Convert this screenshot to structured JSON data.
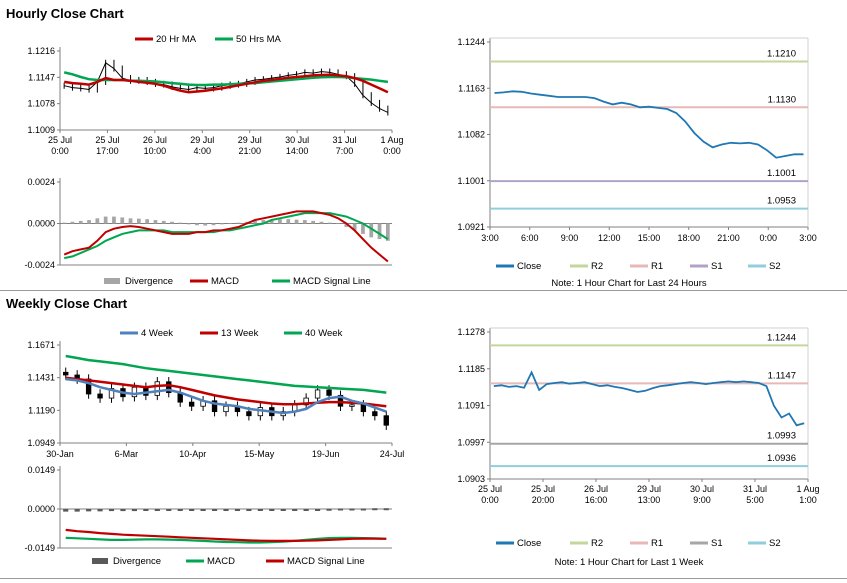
{
  "page": {
    "hourly_title": "Hourly Close Chart",
    "weekly_title": "Weekly Close Chart"
  },
  "chart_data": [
    {
      "id": "hourly-price",
      "type": "line",
      "legend": [
        "20 Hr MA",
        "50 Hrs MA"
      ],
      "yticks": [
        "1.1216",
        "1.1147",
        "1.1078",
        "1.1009"
      ],
      "ylim": [
        1.1009,
        1.1216
      ],
      "xticks": [
        [
          "25 Jul",
          "0:00"
        ],
        [
          "25 Jul",
          "17:00"
        ],
        [
          "26 Jul",
          "10:00"
        ],
        [
          "29 Jul",
          "4:00"
        ],
        [
          "29 Jul",
          "21:00"
        ],
        [
          "30 Jul",
          "14:00"
        ],
        [
          "31 Jul",
          "7:00"
        ],
        [
          "1 Aug",
          "0:00"
        ]
      ],
      "colors": {
        "close": "#000000",
        "ma20": "#c00000",
        "ma50": "#00a650"
      },
      "series": [
        {
          "name": "Close",
          "values": [
            1.1125,
            1.112,
            1.1118,
            1.1115,
            1.1135,
            1.1185,
            1.117,
            1.1145,
            1.1138,
            1.114,
            1.1135,
            1.113,
            1.1128,
            1.1122,
            1.1118,
            1.1115,
            1.112,
            1.1118,
            1.112,
            1.1125,
            1.1128,
            1.113,
            1.1135,
            1.114,
            1.1142,
            1.1145,
            1.1148,
            1.1152,
            1.1155,
            1.116,
            1.1158,
            1.1162,
            1.116,
            1.1155,
            1.115,
            1.113,
            1.11,
            1.108,
            1.1065,
            1.1055
          ]
        },
        {
          "name": "20 Hr MA",
          "values": [
            1.1135,
            1.1132,
            1.113,
            1.1128,
            1.1135,
            1.1145,
            1.114,
            1.114,
            1.1138,
            1.1135,
            1.1133,
            1.113,
            1.1125,
            1.1118,
            1.1112,
            1.1108,
            1.111,
            1.1112,
            1.1115,
            1.1118,
            1.1122,
            1.1126,
            1.113,
            1.1134,
            1.1138,
            1.114,
            1.1143,
            1.1146,
            1.1148,
            1.115,
            1.1152,
            1.1153,
            1.1154,
            1.1152,
            1.115,
            1.1145,
            1.1138,
            1.1128,
            1.1118,
            1.1108
          ]
        },
        {
          "name": "50 Hrs MA",
          "values": [
            1.116,
            1.1155,
            1.1148,
            1.1142,
            1.114,
            1.114,
            1.114,
            1.114,
            1.1138,
            1.1138,
            1.1137,
            1.1136,
            1.1134,
            1.1132,
            1.113,
            1.1128,
            1.1127,
            1.1127,
            1.1128,
            1.1128,
            1.1129,
            1.113,
            1.1131,
            1.1132,
            1.1134,
            1.1136,
            1.1138,
            1.114,
            1.1142,
            1.1144,
            1.1146,
            1.1147,
            1.1148,
            1.1148,
            1.1147,
            1.1145,
            1.1143,
            1.1141,
            1.1138,
            1.1135
          ]
        }
      ]
    },
    {
      "id": "hourly-macd",
      "type": "bar",
      "legend": [
        "Divergence",
        "MACD",
        "MACD Signal Line"
      ],
      "yticks": [
        "0.0024",
        "0.0000",
        "-0.0024"
      ],
      "ylim": [
        -0.0024,
        0.0024
      ],
      "colors": {
        "divergence": "#a6a6a6",
        "macd": "#c00000",
        "signal": "#00a650"
      },
      "series": [
        {
          "name": "Divergence",
          "values": [
            5e-05,
            0.0001,
            0.00015,
            0.0002,
            0.0003,
            0.0004,
            0.0004,
            0.00035,
            0.0003,
            0.00028,
            0.00025,
            0.0002,
            0.00015,
            0.0001,
            5e-05,
            -5e-05,
            -0.0001,
            -0.00012,
            -0.0001,
            -5e-05,
            0.0,
            5e-05,
            0.0001,
            0.00015,
            0.0002,
            0.00022,
            0.00025,
            0.00025,
            0.00022,
            0.0002,
            0.00015,
            0.0001,
            5e-05,
            0.0,
            -0.0002,
            -0.0004,
            -0.0006,
            -0.0008,
            -0.0009,
            -0.001
          ]
        },
        {
          "name": "MACD",
          "values": [
            -0.0018,
            -0.0016,
            -0.0015,
            -0.0014,
            -0.001,
            -0.0005,
            -0.0003,
            -0.0002,
            -0.00015,
            -0.0002,
            -0.0003,
            -0.0004,
            -0.0005,
            -0.0006,
            -0.0006,
            -0.0006,
            -0.0005,
            -0.0005,
            -0.0004,
            -0.0004,
            -0.0003,
            -0.0002,
            0.0,
            0.0002,
            0.0003,
            0.0004,
            0.0005,
            0.0006,
            0.0007,
            0.0007,
            0.0007,
            0.0006,
            0.0005,
            0.0003,
            0.0,
            -0.0004,
            -0.0009,
            -0.0014,
            -0.0018,
            -0.0022
          ]
        },
        {
          "name": "MACD Signal Line",
          "values": [
            -0.002,
            -0.0019,
            -0.0017,
            -0.0015,
            -0.0013,
            -0.001,
            -0.0008,
            -0.0006,
            -0.0005,
            -0.0004,
            -0.0004,
            -0.0004,
            -0.0004,
            -0.0005,
            -0.0005,
            -0.0005,
            -0.0005,
            -0.0005,
            -0.0005,
            -0.0004,
            -0.0004,
            -0.0003,
            -0.0002,
            -0.0001,
            0.0,
            0.0002,
            0.0003,
            0.0004,
            0.0005,
            0.0006,
            0.0006,
            0.0006,
            0.0006,
            0.0005,
            0.0004,
            0.0002,
            0.0,
            -0.0003,
            -0.0006,
            -0.0009
          ]
        }
      ]
    },
    {
      "id": "hourly-pivots",
      "type": "line",
      "note": "Note: 1 Hour Chart for Last 24 Hours",
      "legend": [
        "Close",
        "R2",
        "R1",
        "S1",
        "S2"
      ],
      "yticks": [
        "1.1244",
        "1.1163",
        "1.1082",
        "1.1001",
        "1.0921"
      ],
      "ylim": [
        1.0921,
        1.1244
      ],
      "xticks": [
        "3:00",
        "6:00",
        "9:00",
        "12:00",
        "15:00",
        "18:00",
        "21:00",
        "0:00",
        "3:00"
      ],
      "colors": {
        "close": "#1f77b4",
        "r2": "#c3d69b",
        "r1": "#e6b9b8",
        "s1": "#b3a2c7",
        "s2": "#92cddc"
      },
      "levels": [
        {
          "name": "R2",
          "value": 1.121,
          "label": "1.1210"
        },
        {
          "name": "R1",
          "value": 1.113,
          "label": "1.1130"
        },
        {
          "name": "S1",
          "value": 1.1001,
          "label": "1.1001"
        },
        {
          "name": "S2",
          "value": 1.0953,
          "label": "1.0953"
        }
      ],
      "series": [
        {
          "name": "Close",
          "values": [
            1.1155,
            1.1156,
            1.1158,
            1.1157,
            1.1154,
            1.1152,
            1.115,
            1.1148,
            1.1148,
            1.1148,
            1.1148,
            1.1146,
            1.114,
            1.1135,
            1.1138,
            1.1135,
            1.113,
            1.1131,
            1.1129,
            1.1127,
            1.112,
            1.1105,
            1.1085,
            1.107,
            1.106,
            1.1065,
            1.1068,
            1.1067,
            1.1068,
            1.1065,
            1.1055,
            1.1042,
            1.1045,
            1.1048,
            1.1048
          ]
        }
      ]
    },
    {
      "id": "weekly-price",
      "type": "line",
      "legend": [
        "4 Week",
        "13 Week",
        "40 Week"
      ],
      "yticks": [
        "1.1671",
        "1.1431",
        "1.1190",
        "1.0949"
      ],
      "ylim": [
        1.0949,
        1.1671
      ],
      "xticks": [
        "30-Jan",
        "6-Mar",
        "10-Apr",
        "15-May",
        "19-Jun",
        "24-Jul"
      ],
      "colors": {
        "ma4": "#4f81bd",
        "ma13": "#c00000",
        "ma40": "#00a650",
        "candle": "#000000"
      },
      "series": [
        {
          "name": "Close",
          "values": [
            1.145,
            1.142,
            1.131,
            1.128,
            1.135,
            1.129,
            1.136,
            1.13,
            1.14,
            1.132,
            1.125,
            1.122,
            1.126,
            1.118,
            1.122,
            1.118,
            1.115,
            1.121,
            1.115,
            1.118,
            1.123,
            1.128,
            1.134,
            1.13,
            1.122,
            1.123,
            1.118,
            1.115,
            1.108
          ]
        },
        {
          "name": "4 Week",
          "values": [
            1.142,
            1.141,
            1.139,
            1.136,
            1.134,
            1.132,
            1.131,
            1.132,
            1.133,
            1.134,
            1.132,
            1.129,
            1.126,
            1.124,
            1.123,
            1.122,
            1.12,
            1.119,
            1.118,
            1.117,
            1.118,
            1.12,
            1.125,
            1.128,
            1.129,
            1.126,
            1.124,
            1.121,
            1.118
          ]
        },
        {
          "name": "13 Week",
          "values": [
            1.143,
            1.142,
            1.141,
            1.14,
            1.139,
            1.138,
            1.137,
            1.136,
            1.137,
            1.1375,
            1.136,
            1.134,
            1.132,
            1.13,
            1.1285,
            1.127,
            1.126,
            1.125,
            1.124,
            1.1235,
            1.1235,
            1.124,
            1.1245,
            1.125,
            1.125,
            1.1245,
            1.124,
            1.123,
            1.122
          ]
        },
        {
          "name": "40 Week",
          "values": [
            1.159,
            1.1575,
            1.156,
            1.155,
            1.154,
            1.153,
            1.1515,
            1.15,
            1.149,
            1.148,
            1.147,
            1.146,
            1.145,
            1.144,
            1.143,
            1.142,
            1.141,
            1.14,
            1.139,
            1.138,
            1.137,
            1.1365,
            1.136,
            1.1355,
            1.135,
            1.1345,
            1.134,
            1.133,
            1.132
          ]
        }
      ]
    },
    {
      "id": "weekly-macd",
      "type": "bar",
      "legend": [
        "Divergence",
        "MACD",
        "MACD Signal Line"
      ],
      "yticks": [
        "0.0149",
        "0.0000",
        "-0.0149"
      ],
      "ylim": [
        -0.0149,
        0.0149
      ],
      "colors": {
        "divergence": "#595959",
        "macd": "#00a650",
        "signal": "#c00000"
      },
      "series": [
        {
          "name": "Divergence",
          "values": [
            -0.001,
            -0.001,
            -0.0009,
            -0.0009,
            -0.0008,
            -0.0008,
            -0.0008,
            -0.0007,
            -0.0007,
            -0.0007,
            -0.0006,
            -0.0006,
            -0.0006,
            -0.0005,
            -0.0005,
            -0.0005,
            -0.0004,
            -0.0004,
            -0.0003,
            -0.0003,
            -0.0002,
            -0.0001,
            0.0,
            0.0001,
            0.0002,
            0.0002,
            0.0002,
            0.0003,
            0.0003
          ]
        },
        {
          "name": "MACD",
          "values": [
            -0.011,
            -0.0112,
            -0.0114,
            -0.0116,
            -0.0118,
            -0.0118,
            -0.0117,
            -0.0116,
            -0.0116,
            -0.0117,
            -0.0118,
            -0.012,
            -0.0122,
            -0.0124,
            -0.0126,
            -0.0127,
            -0.0128,
            -0.0128,
            -0.0127,
            -0.0125,
            -0.0122,
            -0.0118,
            -0.0114,
            -0.0111,
            -0.011,
            -0.011,
            -0.0111,
            -0.0112,
            -0.0114
          ]
        },
        {
          "name": "MACD Signal Line",
          "values": [
            -0.008,
            -0.0085,
            -0.0088,
            -0.0092,
            -0.0095,
            -0.0098,
            -0.01,
            -0.0102,
            -0.0104,
            -0.0106,
            -0.0108,
            -0.011,
            -0.0112,
            -0.0114,
            -0.0116,
            -0.0118,
            -0.012,
            -0.0121,
            -0.0122,
            -0.0122,
            -0.0122,
            -0.0121,
            -0.012,
            -0.0118,
            -0.0116,
            -0.0114,
            -0.0113,
            -0.0113,
            -0.0114
          ]
        }
      ]
    },
    {
      "id": "weekly-pivots",
      "type": "line",
      "note": "Note: 1 Hour Chart for Last 1 Week",
      "legend": [
        "Close",
        "R2",
        "R1",
        "S1",
        "S2"
      ],
      "yticks": [
        "1.1278",
        "1.1185",
        "1.1091",
        "1.0997",
        "1.0903"
      ],
      "ylim": [
        1.0903,
        1.1278
      ],
      "xticks": [
        [
          "25 Jul",
          "0:00"
        ],
        [
          "25 Jul",
          "20:00"
        ],
        [
          "26 Jul",
          "16:00"
        ],
        [
          "29 Jul",
          "13:00"
        ],
        [
          "30 Jul",
          "9:00"
        ],
        [
          "31 Jul",
          "5:00"
        ],
        [
          "1 Aug",
          "1:00"
        ]
      ],
      "colors": {
        "close": "#1f77b4",
        "r2": "#c3d69b",
        "r1": "#e6b9b8",
        "s1": "#a6a6a6",
        "s2": "#92cddc"
      },
      "levels": [
        {
          "name": "R2",
          "value": 1.1244,
          "label": "1.1244"
        },
        {
          "name": "R1",
          "value": 1.1147,
          "label": "1.1147"
        },
        {
          "name": "S1",
          "value": 1.0993,
          "label": "1.0993"
        },
        {
          "name": "S2",
          "value": 1.0936,
          "label": "1.0936"
        }
      ],
      "series": [
        {
          "name": "Close",
          "values": [
            1.114,
            1.1142,
            1.1138,
            1.114,
            1.1136,
            1.1175,
            1.113,
            1.1145,
            1.1148,
            1.115,
            1.1146,
            1.1148,
            1.115,
            1.1145,
            1.114,
            1.1142,
            1.1138,
            1.1135,
            1.113,
            1.1125,
            1.1128,
            1.1135,
            1.114,
            1.1142,
            1.1145,
            1.1148,
            1.115,
            1.1148,
            1.1145,
            1.1148,
            1.115,
            1.1152,
            1.115,
            1.1152,
            1.115,
            1.1148,
            1.114,
            1.109,
            1.106,
            1.107,
            1.104,
            1.1045
          ]
        }
      ]
    }
  ]
}
